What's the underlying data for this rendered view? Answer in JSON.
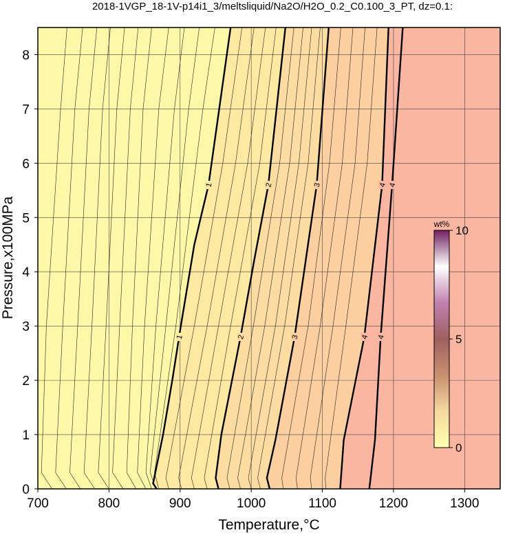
{
  "chart_data": {
    "type": "contour",
    "title": "2018-1VGP_18-1V-p14i1_3/meltsliquid/Na2O/H2O_0.2_C0.100_3_PT, dz=0.1:",
    "x_label": "Temperature,°C",
    "y_label": "Pressure,x100MPa",
    "xlim": [
      700,
      1350
    ],
    "ylim": [
      0,
      8.5
    ],
    "xticks": [
      700,
      800,
      900,
      1000,
      1100,
      1200,
      1300
    ],
    "yticks": [
      0,
      1,
      2,
      3,
      4,
      5,
      6,
      7,
      8
    ],
    "grid": true,
    "background_color": "#fdf8a8",
    "contours": [
      {
        "level": 1,
        "color": "#fde9a2",
        "x": [
          867,
          862,
          876,
          889,
          901,
          920,
          940,
          955,
          971
        ],
        "y": [
          0,
          0.1,
          1,
          2,
          3,
          4.5,
          5.6,
          7,
          8.5
        ]
      },
      {
        "level": 2,
        "color": "#fcdca0",
        "x": [
          954,
          950,
          958,
          985,
          1004,
          1024,
          1048
        ],
        "y": [
          0,
          0.2,
          1,
          2.8,
          4.2,
          5.6,
          8.5
        ]
      },
      {
        "level": 3,
        "color": "#fbcfa0",
        "x": [
          1026,
          1022,
          1034,
          1061,
          1092,
          1109
        ],
        "y": [
          0,
          0.2,
          0.9,
          2.8,
          5.6,
          8.5
        ]
      },
      {
        "level": 4,
        "color": "#fbb6a2",
        "x": [
          1125,
          1130,
          1159,
          1184,
          1193
        ],
        "y": [
          0,
          0.9,
          2.8,
          5.6,
          8.5
        ]
      },
      {
        "level": 4,
        "x": [
          1166,
          1174,
          1182,
          1198,
          1213
        ],
        "y": [
          0,
          0.9,
          2.8,
          5.6,
          8.5
        ]
      }
    ],
    "thin_contours": [
      {
        "x": [
          720,
          705,
          712,
          732,
          741
        ],
        "y": [
          0,
          0.3,
          3,
          7,
          8.5
        ]
      },
      {
        "x": [
          740,
          725,
          735,
          752,
          763
        ],
        "y": [
          0,
          0.3,
          3,
          7,
          8.5
        ]
      },
      {
        "x": [
          760,
          745,
          756,
          772,
          783
        ],
        "y": [
          0,
          0.3,
          3,
          7,
          8.5
        ]
      },
      {
        "x": [
          780,
          765,
          776,
          791,
          802
        ],
        "y": [
          0,
          0.3,
          3,
          7,
          8.5
        ]
      },
      {
        "x": [
          800,
          785,
          796,
          811,
          822
        ],
        "y": [
          0,
          0.3,
          3,
          7,
          8.5
        ]
      },
      {
        "x": [
          820,
          805,
          815,
          830,
          841
        ],
        "y": [
          0,
          0.3,
          3,
          7,
          8.5
        ]
      },
      {
        "x": [
          838,
          825,
          833,
          848,
          860
        ],
        "y": [
          0,
          0.3,
          3,
          7,
          8.5
        ]
      },
      {
        "x": [
          852,
          840,
          850,
          870,
          884
        ],
        "y": [
          0,
          0.3,
          3,
          7,
          8.5
        ]
      },
      {
        "x": [
          860,
          852,
          866,
          892,
          906
        ],
        "y": [
          0,
          0.3,
          3,
          7,
          8.5
        ]
      },
      {
        "x": [
          866,
          858,
          880,
          912,
          927
        ],
        "y": [
          0,
          0.3,
          3,
          7,
          8.5
        ]
      },
      {
        "x": [
          870,
          864,
          894,
          932,
          949
        ],
        "y": [
          0,
          0.3,
          3,
          7,
          8.5
        ]
      },
      {
        "x": [
          884,
          880,
          920,
          960,
          987
        ],
        "y": [
          0,
          0.2,
          3,
          6,
          8.5
        ]
      },
      {
        "x": [
          902,
          898,
          938,
          978,
          1004
        ],
        "y": [
          0,
          0.2,
          3,
          6,
          8.5
        ]
      },
      {
        "x": [
          920,
          916,
          954,
          995,
          1020
        ],
        "y": [
          0,
          0.2,
          3,
          6,
          8.5
        ]
      },
      {
        "x": [
          938,
          934,
          971,
          1012,
          1035
        ],
        "y": [
          0,
          0.2,
          3,
          6,
          8.5
        ]
      },
      {
        "x": [
          970,
          966,
          1003,
          1040,
          1060
        ],
        "y": [
          0,
          0.2,
          3,
          6,
          8.5
        ]
      },
      {
        "x": [
          985,
          981,
          1019,
          1054,
          1073
        ],
        "y": [
          0,
          0.2,
          3,
          6,
          8.5
        ]
      },
      {
        "x": [
          1000,
          996,
          1034,
          1067,
          1085
        ],
        "y": [
          0,
          0.2,
          3,
          6,
          8.5
        ]
      },
      {
        "x": [
          1013,
          1009,
          1047,
          1080,
          1097
        ],
        "y": [
          0,
          0.2,
          3,
          6,
          8.5
        ]
      },
      {
        "x": [
          1045,
          1043,
          1080,
          1110,
          1126
        ],
        "y": [
          0,
          0.2,
          3,
          6,
          8.5
        ]
      },
      {
        "x": [
          1065,
          1063,
          1097,
          1128,
          1143
        ],
        "y": [
          0,
          0.2,
          3,
          6,
          8.5
        ]
      },
      {
        "x": [
          1085,
          1083,
          1115,
          1146,
          1160
        ],
        "y": [
          0,
          0.2,
          3,
          6,
          8.5
        ]
      },
      {
        "x": [
          1105,
          1104,
          1133,
          1163,
          1177
        ],
        "y": [
          0,
          0.2,
          3,
          6,
          8.5
        ]
      }
    ],
    "colorbar": {
      "label": "wt%",
      "lim": [
        0,
        10
      ],
      "ticks": [
        0,
        5,
        10
      ],
      "colors": [
        "#ffffb0",
        "#f5d8a0",
        "#c89070",
        "#a06060",
        "#c080b0",
        "#ffffff",
        "#702060"
      ]
    }
  }
}
